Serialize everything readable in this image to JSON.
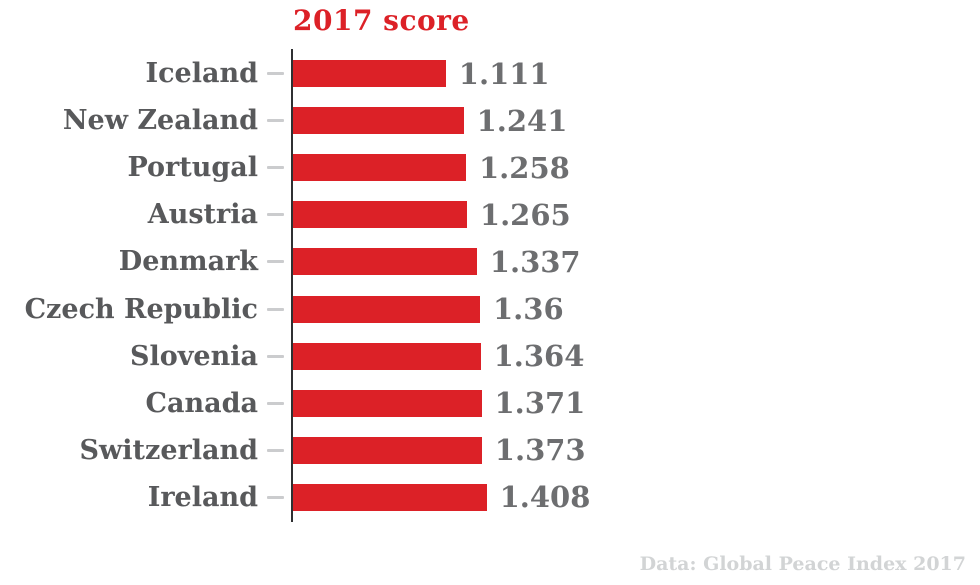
{
  "title": "2017 score",
  "footer": "Data: Global Peace Index 2017",
  "colors": {
    "bar": "#dc2127",
    "title": "#dc2127",
    "category_label": "#58595b",
    "value_label": "#6d6e70",
    "axis": "#2f3032",
    "tick": "#cbccce",
    "footer": "#d2d4d5"
  },
  "chart_data": {
    "type": "bar",
    "orientation": "horizontal",
    "title": "2017 score",
    "categories": [
      "Iceland",
      "New Zealand",
      "Portugal",
      "Austria",
      "Denmark",
      "Czech Republic",
      "Slovenia",
      "Canada",
      "Switzerland",
      "Ireland"
    ],
    "values": [
      1.111,
      1.241,
      1.258,
      1.265,
      1.337,
      1.36,
      1.364,
      1.371,
      1.373,
      1.408
    ],
    "value_labels": [
      "1.111",
      "1.241",
      "1.258",
      "1.265",
      "1.337",
      "1.36",
      "1.364",
      "1.371",
      "1.373",
      "1.408"
    ],
    "xlim": [
      0,
      1.5
    ],
    "grid": false,
    "legend": "none",
    "source": "Data: Global Peace Index 2017"
  }
}
